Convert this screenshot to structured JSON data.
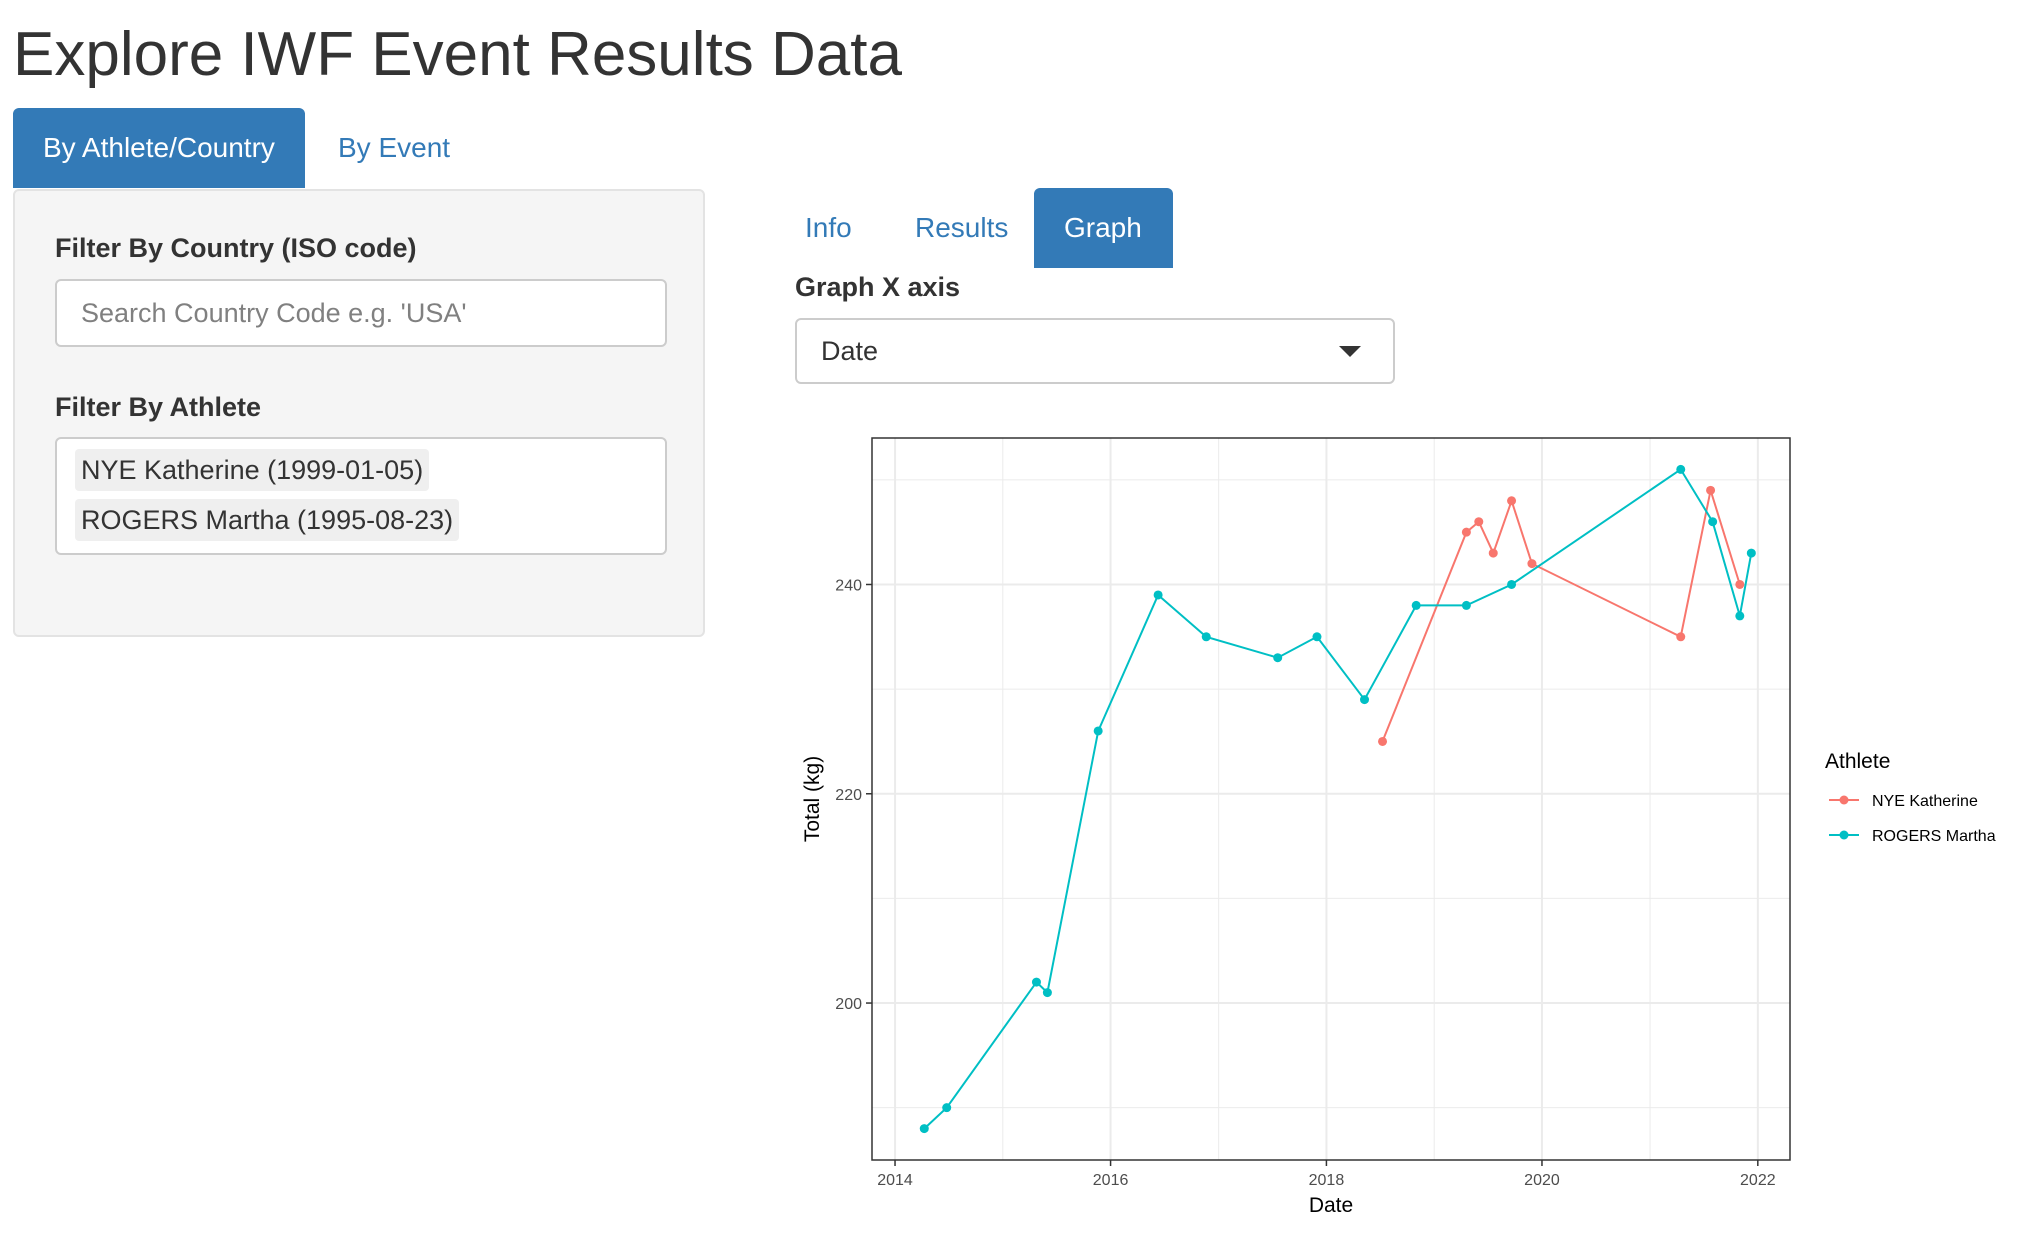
{
  "page": {
    "title": "Explore IWF Event Results Data"
  },
  "main_tabs": [
    {
      "label": "By Athlete/Country",
      "active": true
    },
    {
      "label": "By Event",
      "active": false
    }
  ],
  "sidebar": {
    "country_filter": {
      "label": "Filter By Country (ISO code)",
      "value": "",
      "placeholder": "Search Country Code e.g. 'USA'"
    },
    "athlete_filter": {
      "label": "Filter By Athlete",
      "selected": [
        "NYE Katherine (1999-01-05)",
        "ROGERS Martha (1995-08-23)"
      ]
    }
  },
  "sub_tabs": [
    {
      "label": "Info",
      "active": false
    },
    {
      "label": "Results",
      "active": false
    },
    {
      "label": "Graph",
      "active": true
    }
  ],
  "graph_controls": {
    "x_axis_label": "Graph X axis",
    "x_axis_value": "Date",
    "dropdown_icon": "caret-down-icon"
  },
  "colors": {
    "accent": "#337ab7",
    "series_nye": "#f8766d",
    "series_rogers": "#00bfc4"
  },
  "chart_data": {
    "type": "line",
    "xlabel": "Date",
    "ylabel": "Total (kg)",
    "legend_title": "Athlete",
    "legend_position": "right",
    "grid": true,
    "xlim": [
      "2013-10-15",
      "2022-04-20"
    ],
    "ylim": [
      185,
      254
    ],
    "x_ticks": [
      "2014",
      "2016",
      "2018",
      "2020",
      "2022"
    ],
    "y_ticks": [
      200,
      220,
      240
    ],
    "series": [
      {
        "name": "NYE Katherine",
        "color": "#f8766d",
        "points": [
          {
            "x": "2018-07-10",
            "y": 225
          },
          {
            "x": "2019-04-20",
            "y": 245
          },
          {
            "x": "2019-06-01",
            "y": 246
          },
          {
            "x": "2019-07-20",
            "y": 243
          },
          {
            "x": "2019-09-20",
            "y": 248
          },
          {
            "x": "2019-11-28",
            "y": 242
          },
          {
            "x": "2021-04-15",
            "y": 235
          },
          {
            "x": "2021-07-25",
            "y": 249
          },
          {
            "x": "2021-11-01",
            "y": 240
          }
        ]
      },
      {
        "name": "ROGERS Martha",
        "color": "#00bfc4",
        "points": [
          {
            "x": "2014-04-10",
            "y": 188
          },
          {
            "x": "2014-06-25",
            "y": 190
          },
          {
            "x": "2015-04-25",
            "y": 202
          },
          {
            "x": "2015-06-01",
            "y": 201
          },
          {
            "x": "2015-11-20",
            "y": 226
          },
          {
            "x": "2016-06-10",
            "y": 239
          },
          {
            "x": "2016-11-20",
            "y": 235
          },
          {
            "x": "2017-07-20",
            "y": 233
          },
          {
            "x": "2017-11-30",
            "y": 235
          },
          {
            "x": "2018-05-10",
            "y": 229
          },
          {
            "x": "2018-11-01",
            "y": 238
          },
          {
            "x": "2019-04-20",
            "y": 238
          },
          {
            "x": "2019-09-20",
            "y": 240
          },
          {
            "x": "2021-04-15",
            "y": 251
          },
          {
            "x": "2021-08-01",
            "y": 246
          },
          {
            "x": "2021-11-01",
            "y": 237
          },
          {
            "x": "2021-12-10",
            "y": 243
          }
        ]
      }
    ]
  }
}
